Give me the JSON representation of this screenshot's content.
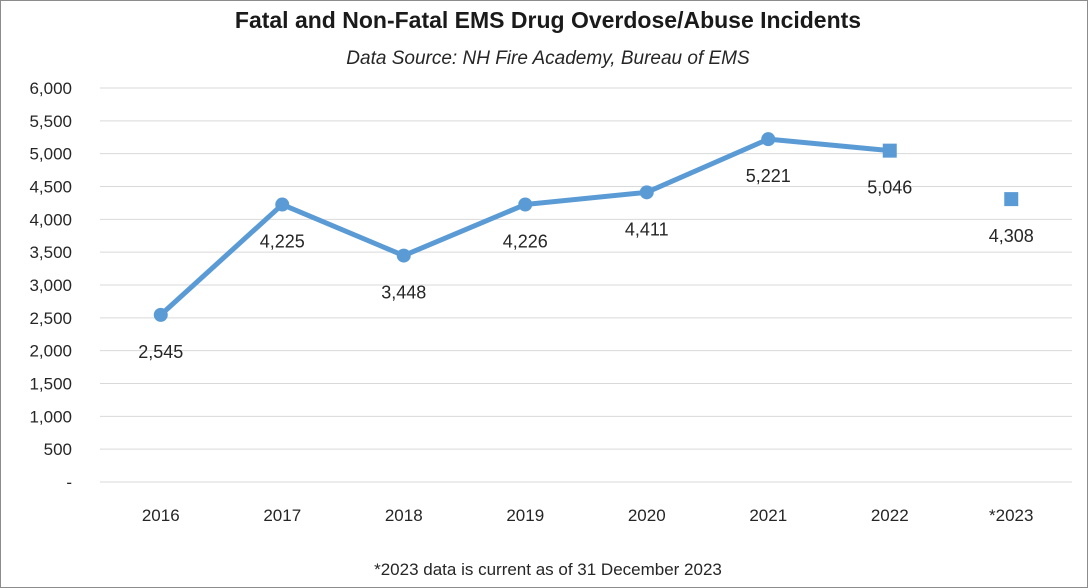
{
  "chart_data": {
    "type": "line",
    "title": "Fatal and Non-Fatal EMS Drug Overdose/Abuse Incidents",
    "subtitle": "Data Source: NH Fire Academy, Bureau of EMS",
    "categories": [
      "2016",
      "2017",
      "2018",
      "2019",
      "2020",
      "2021",
      "2022",
      "*2023"
    ],
    "series": [
      {
        "values": [
          2545,
          4225,
          3448,
          4226,
          4411,
          5221,
          5046,
          4308
        ],
        "data_labels": [
          "2,545",
          "4,225",
          "3,448",
          "4,226",
          "4,411",
          "5,221",
          "5,046",
          "4,308"
        ],
        "markers": [
          "circle",
          "circle",
          "circle",
          "circle",
          "circle",
          "circle",
          "square",
          "square"
        ],
        "connected": [
          true,
          true,
          true,
          true,
          true,
          true,
          true,
          false
        ]
      }
    ],
    "ylim": [
      0,
      6000
    ],
    "y_ticks": [
      0,
      500,
      1000,
      1500,
      2000,
      2500,
      3000,
      3500,
      4000,
      4500,
      5000,
      5500,
      6000
    ],
    "y_tick_labels": [
      "-",
      "500",
      "1,000",
      "1,500",
      "2,000",
      "2,500",
      "3,000",
      "3,500",
      "4,000",
      "4,500",
      "5,000",
      "5,500",
      "6,000"
    ],
    "grid": true,
    "legend": "none",
    "color": "#5b9bd5",
    "grid_color": "#d9d9d9"
  },
  "footnote": "*2023 data is current as of 31 December 2023"
}
